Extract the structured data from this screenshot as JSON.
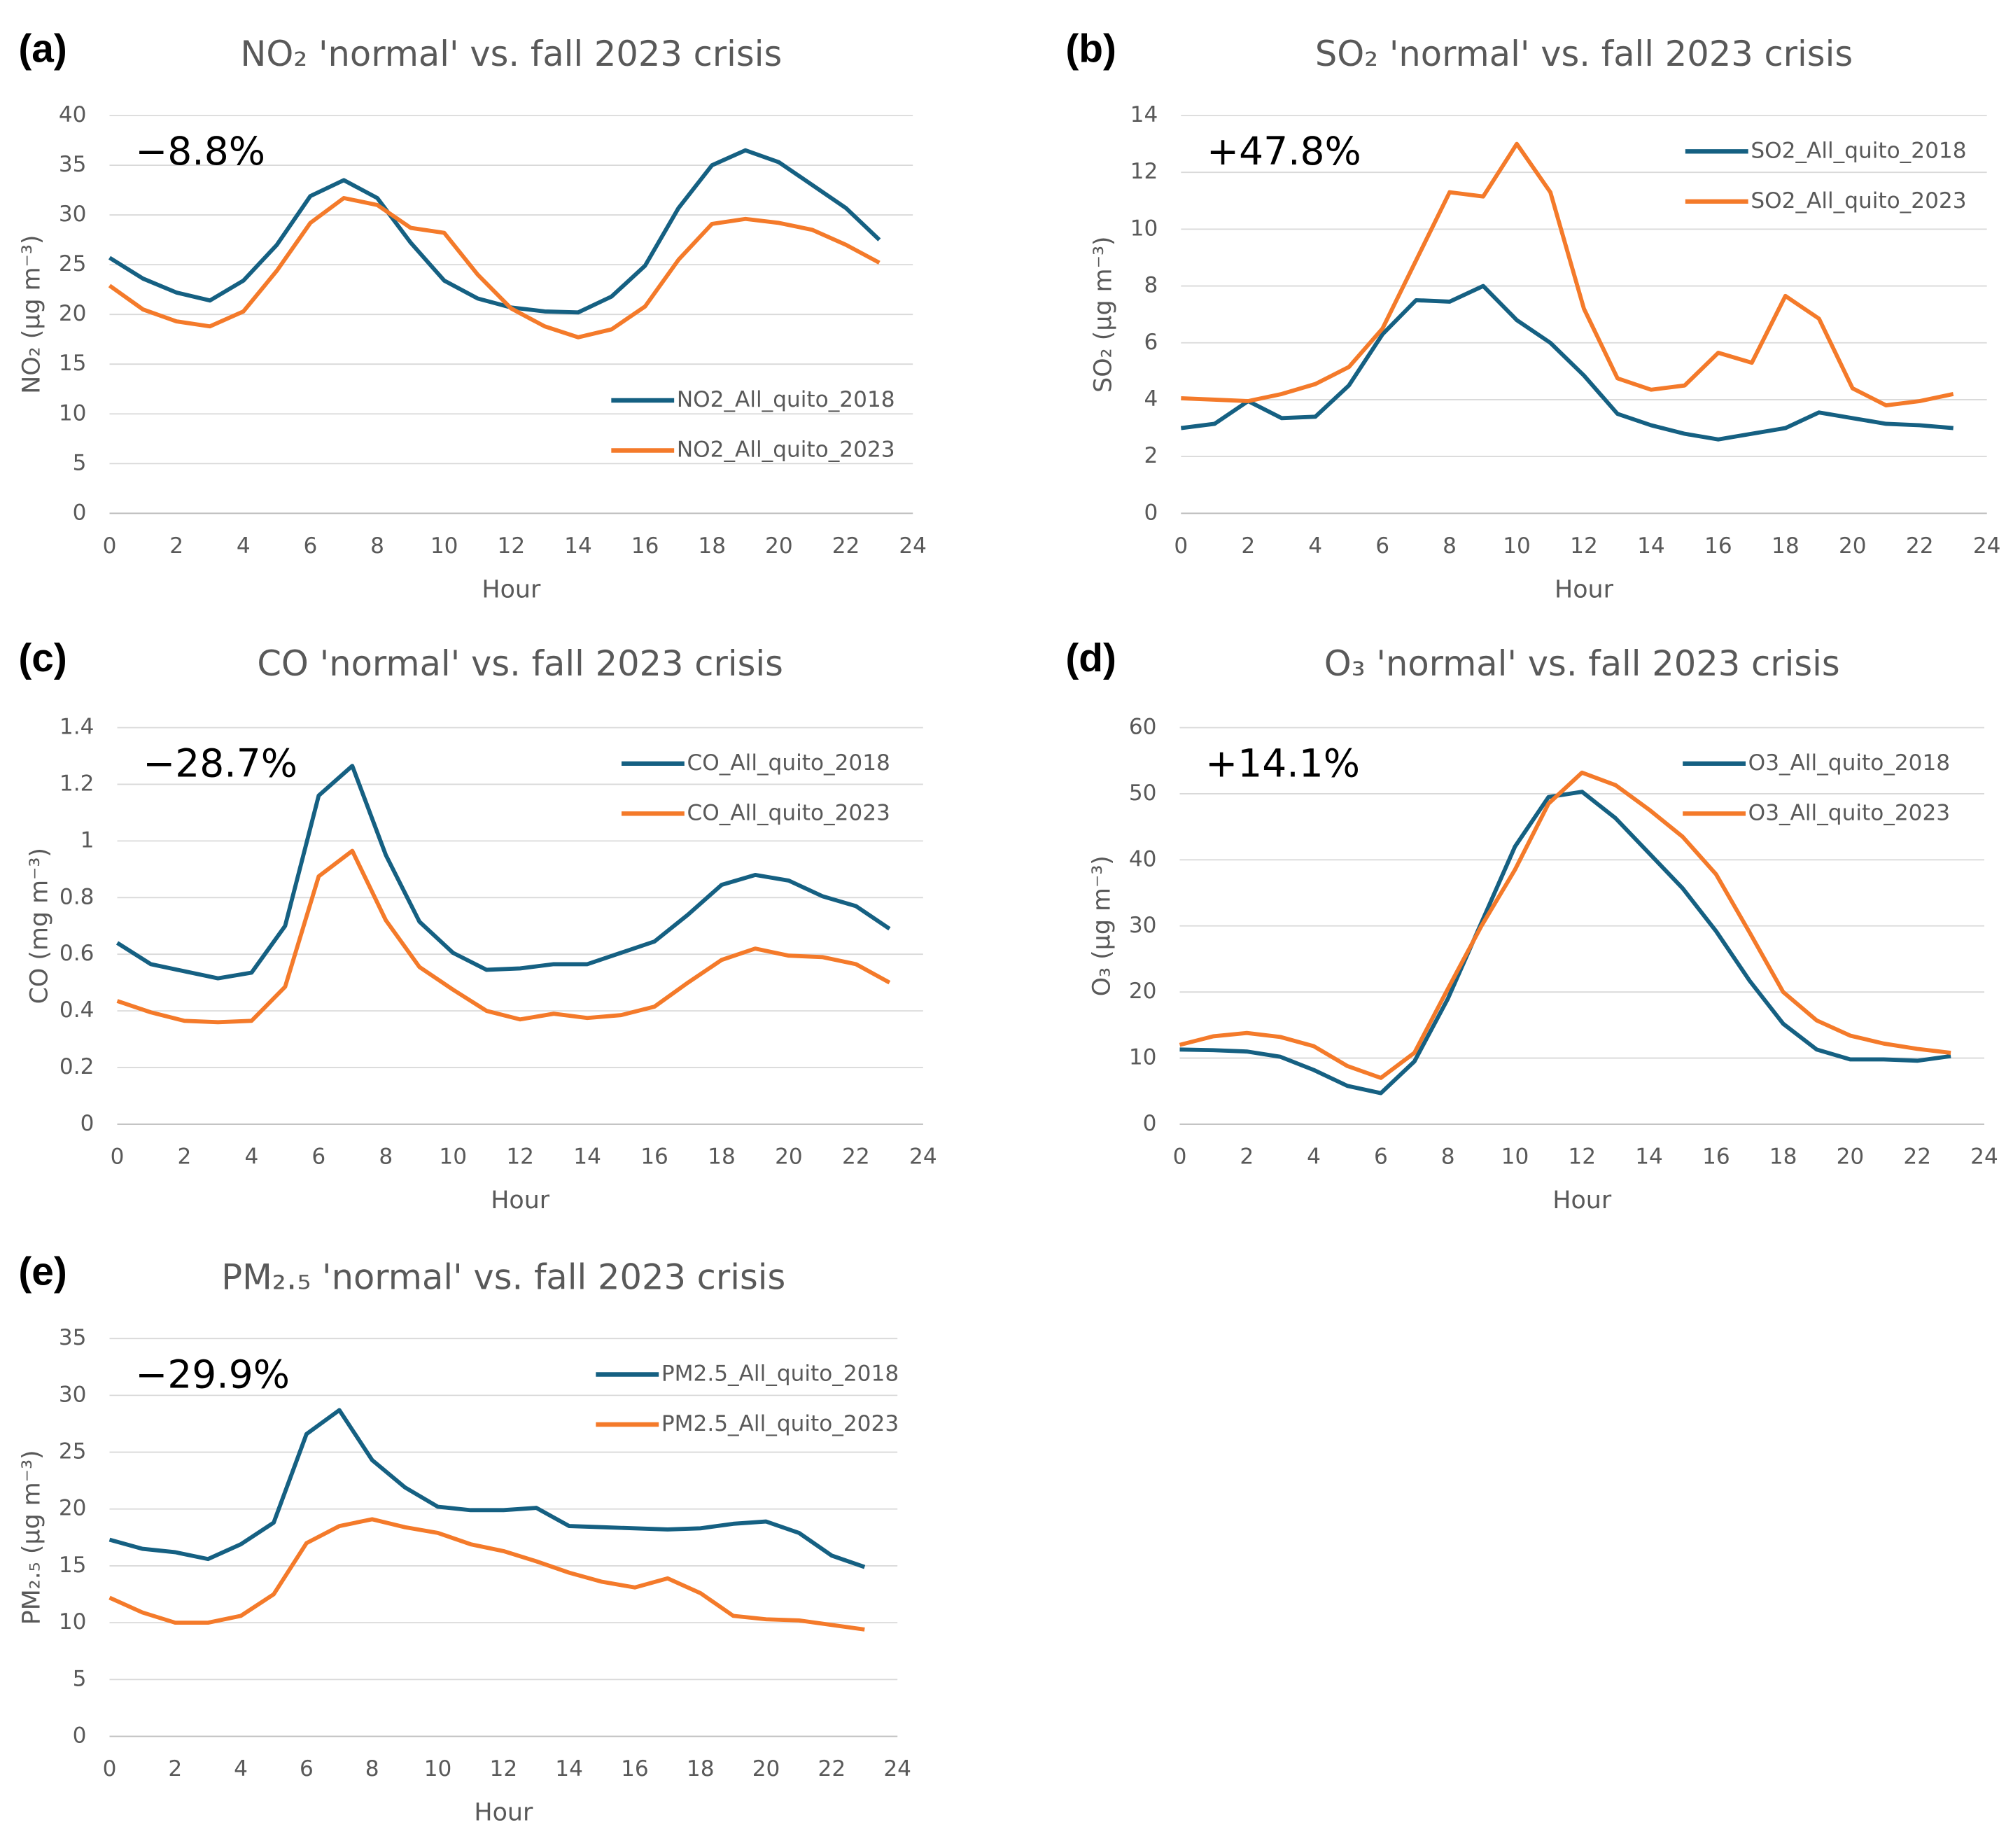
{
  "chart_data": [
    {
      "type": "line",
      "panel_label": "(a)",
      "title": "NO₂ 'normal' vs. fall 2023 crisis",
      "xlabel": "Hour",
      "ylabel": "NO₂ (µg m⁻³)",
      "annotation": "−8.8%",
      "x": [
        0,
        1,
        2,
        3,
        4,
        5,
        6,
        7,
        8,
        9,
        10,
        11,
        12,
        13,
        14,
        15,
        16,
        17,
        18,
        19,
        20,
        21,
        22,
        23
      ],
      "xlim": [
        0,
        24
      ],
      "xticks": [
        0,
        2,
        4,
        6,
        8,
        10,
        12,
        14,
        16,
        18,
        20,
        22,
        24
      ],
      "ylim": [
        0,
        40
      ],
      "yticks": [
        0,
        5,
        10,
        15,
        20,
        25,
        30,
        35,
        40
      ],
      "grid": true,
      "legend": "lower right",
      "series": [
        {
          "name": "NO2_All_quito_2018",
          "color": "#156082",
          "values": [
            25.7,
            23.6,
            22.2,
            21.4,
            23.4,
            27,
            31.9,
            33.5,
            31.7,
            27.2,
            23.4,
            21.6,
            20.7,
            20.3,
            20.2,
            21.8,
            24.9,
            30.7,
            35,
            36.5,
            35.3,
            33,
            30.7,
            27.5
          ]
        },
        {
          "name": "NO2_All_quito_2023",
          "color": "#f47a2a",
          "values": [
            22.9,
            20.5,
            19.3,
            18.8,
            20.3,
            24.4,
            29.2,
            31.7,
            31,
            28.7,
            28.2,
            24,
            20.6,
            18.8,
            17.7,
            18.5,
            20.8,
            25.5,
            29.1,
            29.6,
            29.2,
            28.5,
            27,
            25.2
          ]
        }
      ]
    },
    {
      "type": "line",
      "panel_label": "(b)",
      "title": "SO₂ 'normal' vs. fall 2023 crisis",
      "xlabel": "Hour",
      "ylabel": "SO₂ (µg m⁻³)",
      "annotation": "+47.8%",
      "x": [
        0,
        1,
        2,
        3,
        4,
        5,
        6,
        7,
        8,
        9,
        10,
        11,
        12,
        13,
        14,
        15,
        16,
        17,
        18,
        19,
        20,
        21,
        22,
        23
      ],
      "xlim": [
        0,
        24
      ],
      "xticks": [
        0,
        2,
        4,
        6,
        8,
        10,
        12,
        14,
        16,
        18,
        20,
        22,
        24
      ],
      "ylim": [
        0,
        14
      ],
      "yticks": [
        0,
        2,
        4,
        6,
        8,
        10,
        12,
        14
      ],
      "grid": true,
      "legend": "upper right",
      "series": [
        {
          "name": "SO2_All_quito_2018",
          "color": "#156082",
          "values": [
            3,
            3.15,
            3.95,
            3.35,
            3.4,
            4.5,
            6.3,
            7.5,
            7.45,
            8,
            6.8,
            6,
            4.85,
            3.5,
            3.1,
            2.8,
            2.6,
            2.8,
            3,
            3.55,
            3.35,
            3.15,
            3.1,
            3
          ]
        },
        {
          "name": "SO2_All_quito_2023",
          "color": "#f47a2a",
          "values": [
            4.05,
            4,
            3.95,
            4.2,
            4.55,
            5.15,
            6.5,
            8.9,
            11.3,
            11.15,
            13,
            11.3,
            7.2,
            4.75,
            4.35,
            4.5,
            5.65,
            5.3,
            7.65,
            6.85,
            4.4,
            3.8,
            3.95,
            4.2
          ]
        }
      ]
    },
    {
      "type": "line",
      "panel_label": "(c)",
      "title": "CO 'normal' vs. fall 2023 crisis",
      "xlabel": "Hour",
      "ylabel": "CO (mg m⁻³)",
      "annotation": "−28.7%",
      "x": [
        0,
        1,
        2,
        3,
        4,
        5,
        6,
        7,
        8,
        9,
        10,
        11,
        12,
        13,
        14,
        15,
        16,
        17,
        18,
        19,
        20,
        21,
        22,
        23
      ],
      "xlim": [
        0,
        24
      ],
      "xticks": [
        0,
        2,
        4,
        6,
        8,
        10,
        12,
        14,
        16,
        18,
        20,
        22,
        24
      ],
      "ylim": [
        0,
        1.4
      ],
      "yticks": [
        0,
        0.2,
        0.4,
        0.6,
        0.8,
        1,
        1.2,
        1.4
      ],
      "grid": true,
      "legend": "upper right",
      "series": [
        {
          "name": "CO_All_quito_2018",
          "color": "#156082",
          "values": [
            0.64,
            0.565,
            0.54,
            0.515,
            0.535,
            0.7,
            1.16,
            1.265,
            0.95,
            0.715,
            0.605,
            0.545,
            0.55,
            0.565,
            0.565,
            0.605,
            0.645,
            0.74,
            0.845,
            0.88,
            0.86,
            0.805,
            0.77,
            0.69
          ]
        },
        {
          "name": "CO_All_quito_2023",
          "color": "#f47a2a",
          "values": [
            0.435,
            0.395,
            0.365,
            0.36,
            0.365,
            0.485,
            0.875,
            0.965,
            0.72,
            0.555,
            0.475,
            0.4,
            0.37,
            0.39,
            0.375,
            0.385,
            0.415,
            0.5,
            0.58,
            0.62,
            0.595,
            0.59,
            0.565,
            0.5
          ]
        }
      ]
    },
    {
      "type": "line",
      "panel_label": "(d)",
      "title": "O₃ 'normal' vs. fall 2023 crisis",
      "xlabel": "Hour",
      "ylabel": "O₃ (µg m⁻³)",
      "annotation": "+14.1%",
      "x": [
        0,
        1,
        2,
        3,
        4,
        5,
        6,
        7,
        8,
        9,
        10,
        11,
        12,
        13,
        14,
        15,
        16,
        17,
        18,
        19,
        20,
        21,
        22,
        23
      ],
      "xlim": [
        0,
        24
      ],
      "xticks": [
        0,
        2,
        4,
        6,
        8,
        10,
        12,
        14,
        16,
        18,
        20,
        22,
        24
      ],
      "ylim": [
        0,
        60
      ],
      "yticks": [
        0,
        10,
        20,
        30,
        40,
        50,
        60
      ],
      "grid": true,
      "legend": "upper right",
      "series": [
        {
          "name": "O3_All_quito_2018",
          "color": "#156082",
          "values": [
            11.3,
            11.2,
            11,
            10.2,
            8.2,
            5.8,
            4.7,
            9.5,
            19,
            30.5,
            42,
            49.5,
            50.3,
            46.3,
            41,
            35.7,
            29.2,
            21.7,
            15.2,
            11.3,
            9.8,
            9.8,
            9.6,
            10.3
          ]
        },
        {
          "name": "O3_All_quito_2023",
          "color": "#f47a2a",
          "values": [
            12,
            13.3,
            13.8,
            13.2,
            11.8,
            8.8,
            7,
            10.8,
            20.5,
            30,
            38.5,
            48.5,
            53.2,
            51.3,
            47.6,
            43.5,
            37.8,
            29,
            20,
            15.7,
            13.4,
            12.2,
            11.4,
            10.8
          ]
        }
      ]
    },
    {
      "type": "line",
      "panel_label": "(e)",
      "title": "PM₂.₅ 'normal' vs. fall 2023 crisis",
      "xlabel": "Hour",
      "ylabel": "PM₂.₅ (µg m⁻³)",
      "annotation": "−29.9%",
      "x": [
        0,
        1,
        2,
        3,
        4,
        5,
        6,
        7,
        8,
        9,
        10,
        11,
        12,
        13,
        14,
        15,
        16,
        17,
        18,
        19,
        20,
        21,
        22,
        23
      ],
      "xlim": [
        0,
        24
      ],
      "xticks": [
        0,
        2,
        4,
        6,
        8,
        10,
        12,
        14,
        16,
        18,
        20,
        22,
        24
      ],
      "ylim": [
        0,
        35
      ],
      "yticks": [
        0,
        5,
        10,
        15,
        20,
        25,
        30,
        35
      ],
      "grid": true,
      "legend": "upper right",
      "series": [
        {
          "name": "PM2.5_All_quito_2018",
          "color": "#156082",
          "values": [
            17.3,
            16.5,
            16.2,
            15.6,
            16.9,
            18.8,
            26.6,
            28.7,
            24.3,
            21.9,
            20.2,
            19.9,
            19.9,
            20.1,
            18.5,
            18.4,
            18.3,
            18.2,
            18.3,
            18.7,
            18.9,
            17.9,
            15.9,
            14.9
          ]
        },
        {
          "name": "PM2.5_All_quito_2023",
          "color": "#f47a2a",
          "values": [
            12.2,
            10.9,
            10,
            10,
            10.6,
            12.5,
            17,
            18.5,
            19.1,
            18.4,
            17.9,
            16.9,
            16.3,
            15.4,
            14.4,
            13.6,
            13.1,
            13.9,
            12.6,
            10.6,
            10.3,
            10.2,
            9.8,
            9.4
          ]
        }
      ]
    }
  ]
}
